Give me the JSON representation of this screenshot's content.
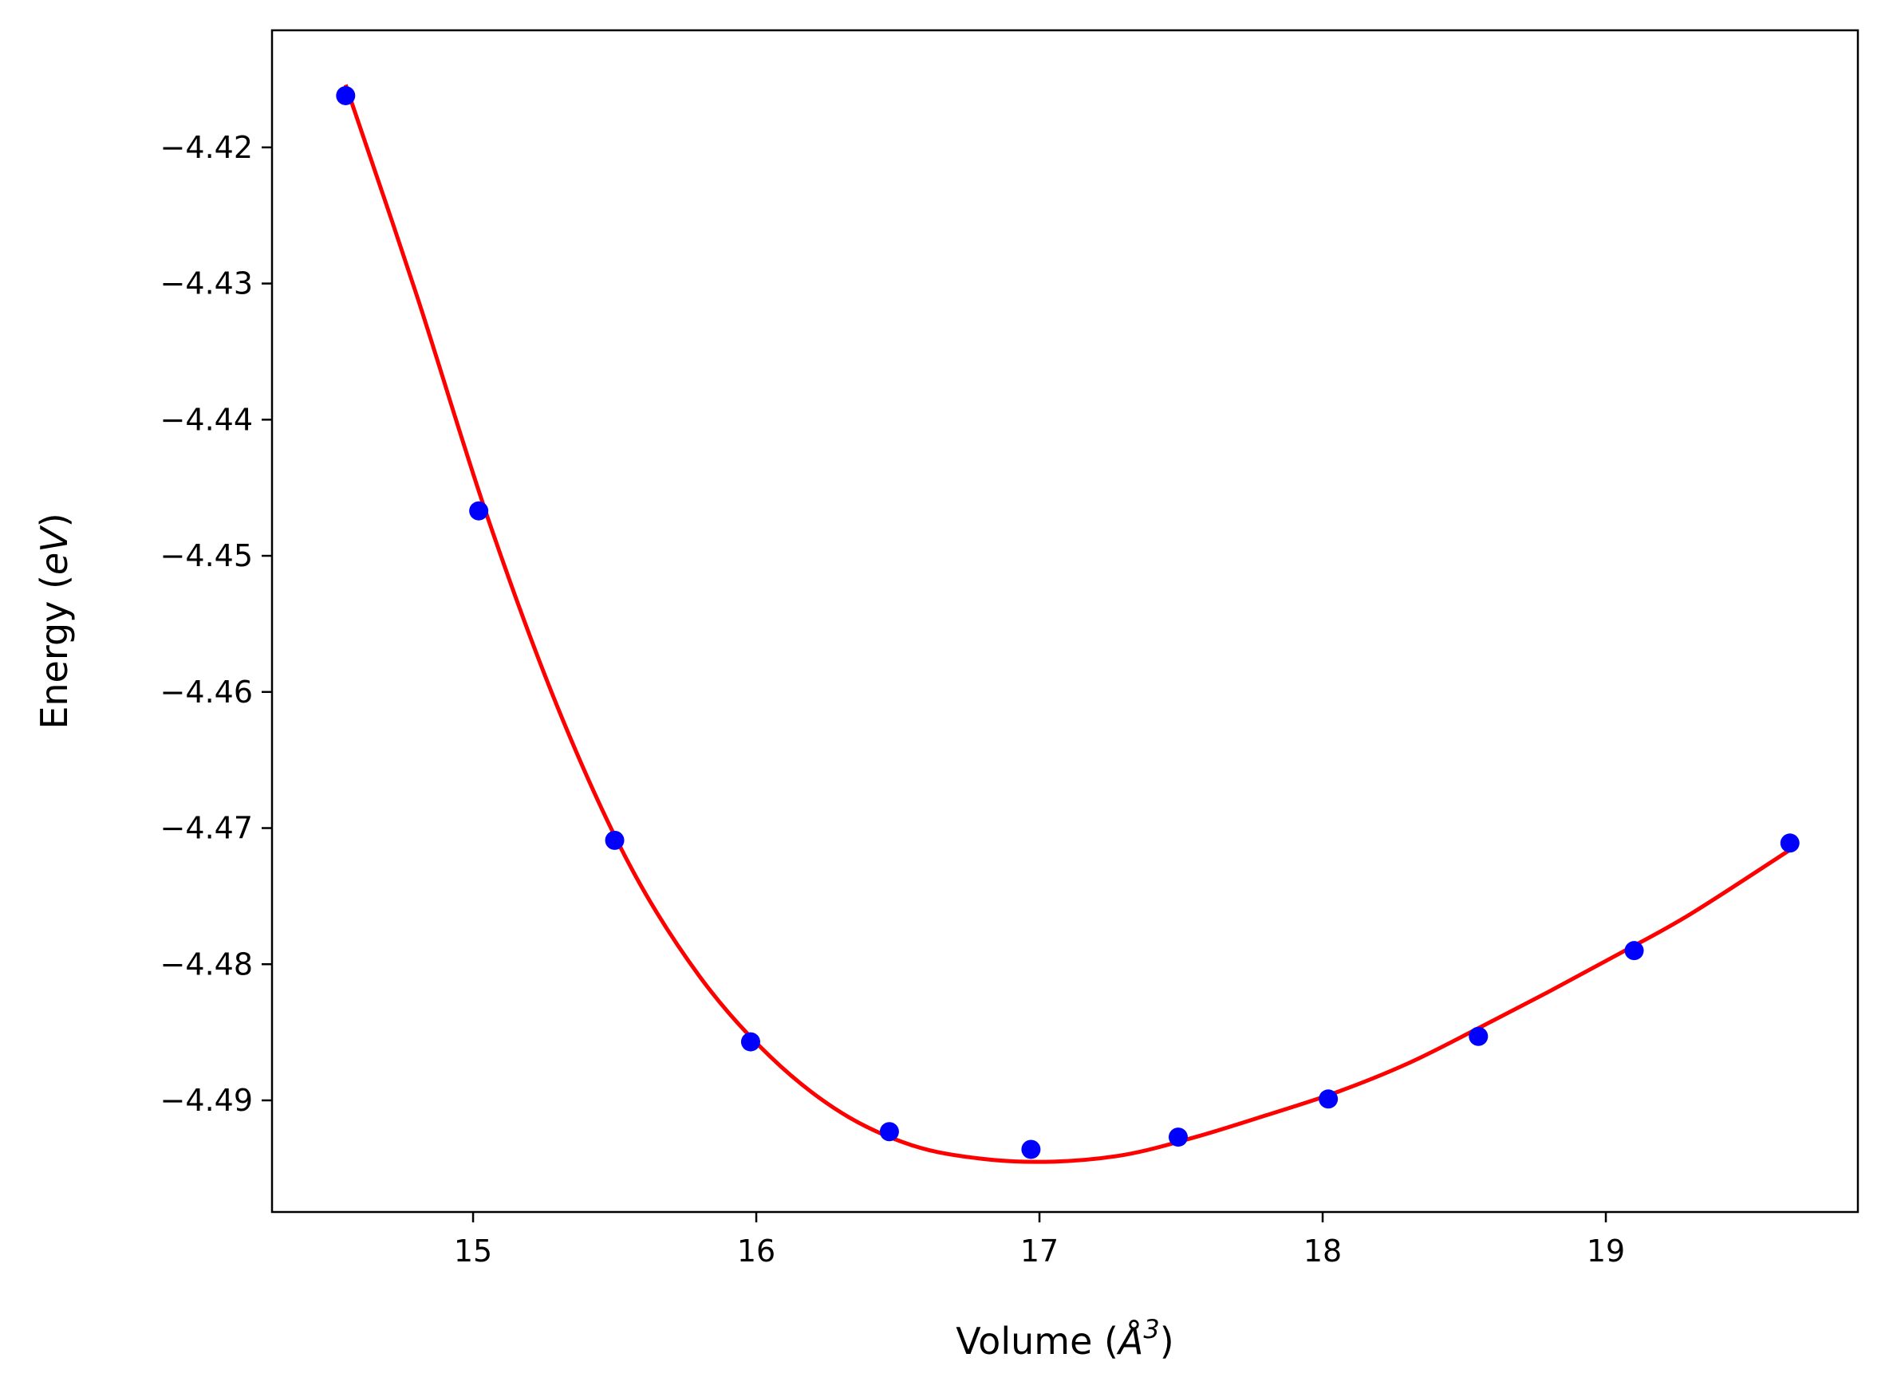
{
  "chart_data": {
    "type": "scatter",
    "xlabel_prefix": "Volume (",
    "xlabel_symbol": "Å",
    "xlabel_exponent": "3",
    "xlabel_suffix": ")",
    "ylabel_prefix": "Energy (",
    "ylabel_unit": "eV",
    "ylabel_suffix": ")",
    "xlim": [
      14.29,
      19.89
    ],
    "ylim": [
      -4.4982,
      -4.4114
    ],
    "x_ticks": [
      15,
      16,
      17,
      18,
      19
    ],
    "x_tick_labels": [
      "15",
      "16",
      "17",
      "18",
      "19"
    ],
    "y_ticks": [
      -4.42,
      -4.43,
      -4.44,
      -4.45,
      -4.46,
      -4.47,
      -4.48,
      -4.49
    ],
    "y_tick_labels": [
      "−4.42",
      "−4.43",
      "−4.44",
      "−4.45",
      "−4.46",
      "−4.47",
      "−4.48",
      "−4.49"
    ],
    "grid": false,
    "series": [
      {
        "kind": "points",
        "color": "#0000ff",
        "x": [
          14.55,
          15.02,
          15.5,
          15.98,
          16.47,
          16.97,
          17.49,
          18.02,
          18.55,
          19.1,
          19.65
        ],
        "y": [
          -4.4162,
          -4.4467,
          -4.4709,
          -4.4857,
          -4.4923,
          -4.4936,
          -4.4927,
          -4.4899,
          -4.4853,
          -4.479,
          -4.4711
        ]
      },
      {
        "kind": "fit-line",
        "color": "#ff0000",
        "x": [
          14.55,
          14.8,
          15.05,
          15.3,
          15.55,
          15.8,
          16.05,
          16.3,
          16.55,
          16.8,
          17.05,
          17.3,
          17.55,
          17.8,
          18.05,
          18.3,
          18.55,
          18.8,
          19.05,
          19.3,
          19.65
        ],
        "y": [
          -4.4154,
          -4.4308,
          -4.4471,
          -4.4612,
          -4.4726,
          -4.4809,
          -4.4868,
          -4.4909,
          -4.4933,
          -4.4943,
          -4.4945,
          -4.494,
          -4.4927,
          -4.4911,
          -4.4894,
          -4.4873,
          -4.4847,
          -4.482,
          -4.4792,
          -4.4763,
          -4.4716
        ]
      }
    ]
  }
}
